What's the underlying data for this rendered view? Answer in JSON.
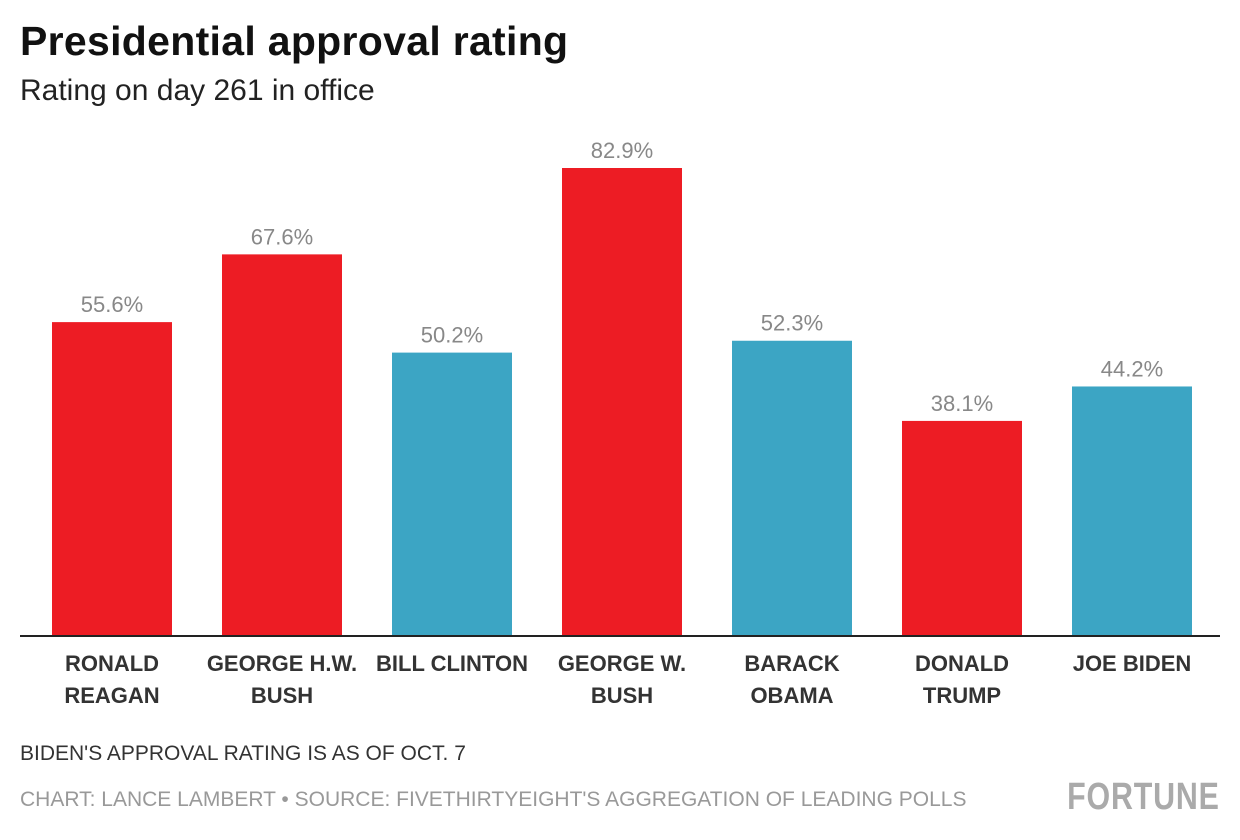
{
  "chart_data": {
    "type": "bar",
    "title": "Presidential approval rating",
    "subtitle": "Rating on day 261 in office",
    "categories": [
      [
        "RONALD",
        "REAGAN"
      ],
      [
        "GEORGE H.W.",
        "BUSH"
      ],
      [
        "BILL CLINTON"
      ],
      [
        "GEORGE W.",
        "BUSH"
      ],
      [
        "BARACK",
        "OBAMA"
      ],
      [
        "DONALD",
        "TRUMP"
      ],
      [
        "JOE BIDEN"
      ]
    ],
    "values": [
      55.6,
      67.6,
      50.2,
      82.9,
      52.3,
      38.1,
      44.2
    ],
    "data_labels": [
      "55.6%",
      "67.6%",
      "50.2%",
      "82.9%",
      "52.3%",
      "38.1%",
      "44.2%"
    ],
    "party": [
      "R",
      "R",
      "D",
      "R",
      "D",
      "R",
      "D"
    ],
    "colors": {
      "R": "#ED1C24",
      "D": "#3CA5C4"
    },
    "ylim": [
      0,
      82.9
    ],
    "grid": false,
    "xlabel": "",
    "ylabel": ""
  },
  "footer": {
    "note": "BIDEN'S APPROVAL RATING IS AS OF OCT. 7",
    "source": "CHART: LANCE LAMBERT • SOURCE: FIVETHIRTYEIGHT'S AGGREGATION OF LEADING POLLS",
    "logo": "FORTUNE"
  }
}
